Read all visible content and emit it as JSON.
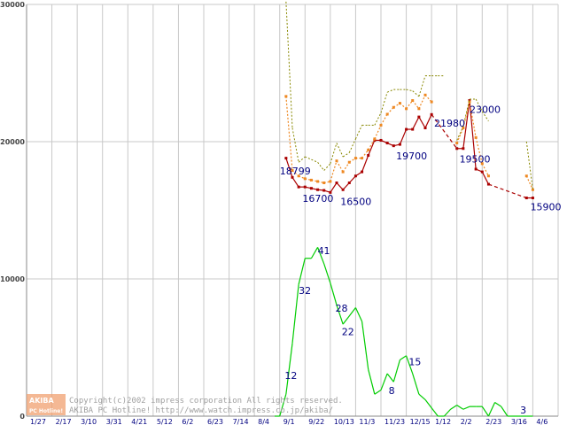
{
  "chart_data": {
    "type": "line",
    "ylim": [
      0,
      30000
    ],
    "y_ticks": [
      0,
      10000,
      20000,
      30000
    ],
    "y_tick_labels": [
      "0",
      "10000",
      "20000",
      "30000"
    ],
    "x_tick_labels": [
      "1/27",
      "2/17",
      "3/10",
      "3/31",
      "4/21",
      "5/12",
      "6/2",
      "6/23",
      "7/14",
      "8/4",
      "9/1",
      "9/22",
      "10/13",
      "11/3",
      "11/23",
      "12/15",
      "1/12",
      "2/2",
      "2/23",
      "3/16",
      "4/6"
    ],
    "grid": true,
    "colors": {
      "min_price": "#aa0000",
      "avg_price": "#ee8822",
      "max_price": "#888800",
      "count": "#00cc00",
      "grid": "#c8c8c8",
      "labels": "#000080"
    },
    "series": [
      {
        "key": "min_price",
        "x": [
          10.25,
          10.5,
          10.75,
          11.0,
          11.25,
          11.5,
          11.75,
          12.0,
          12.25,
          12.5,
          12.75,
          13.0,
          13.25,
          13.5,
          13.75,
          14.0,
          14.25,
          14.5,
          14.75,
          15.0,
          15.25,
          15.5,
          15.75,
          16.0,
          16.25,
          16.5,
          16.75,
          17.0,
          17.25,
          17.5,
          17.75,
          18.0,
          18.25,
          18.5,
          18.75,
          19.0,
          19.25,
          19.5,
          19.75,
          20.0
        ],
        "values": [
          18799,
          17400,
          16700,
          16700,
          16600,
          16500,
          16450,
          16300,
          17000,
          16500,
          17000,
          17500,
          17800,
          19000,
          20100,
          20100,
          19900,
          19700,
          19800,
          20900,
          20900,
          21800,
          21000,
          21980,
          null,
          null,
          null,
          19500,
          19500,
          23000,
          18000,
          17800,
          16900,
          null,
          null,
          null,
          null,
          null,
          15900,
          15900
        ],
        "segment_styles": [
          "solid",
          "solid",
          "solid",
          "solid",
          "solid",
          "solid",
          "solid",
          "solid",
          "solid",
          "solid",
          "solid",
          "solid",
          "solid",
          "solid",
          "solid",
          "solid",
          "solid",
          "solid",
          "solid",
          "solid",
          "solid",
          "solid",
          "solid",
          "dashed",
          "dashed",
          "dashed",
          "dashed",
          "solid",
          "solid",
          "solid",
          "solid",
          "solid",
          "dashed",
          "dashed",
          "dashed",
          "dashed",
          "dashed",
          "dashed",
          "solid"
        ]
      },
      {
        "key": "avg_price",
        "x": [
          10.25,
          10.5,
          10.75,
          11.0,
          11.25,
          11.5,
          11.75,
          12.0,
          12.25,
          12.5,
          12.75,
          13.0,
          13.25,
          13.5,
          13.75,
          14.0,
          14.25,
          14.5,
          14.75,
          15.0,
          15.25,
          15.5,
          15.75,
          16.0,
          16.25,
          16.5,
          16.75,
          17.0,
          17.25,
          17.5,
          17.75,
          18.0,
          18.25,
          18.5,
          18.75,
          19.0,
          19.25,
          19.5,
          19.75,
          20.0
        ],
        "values": [
          23300,
          17900,
          17500,
          17300,
          17200,
          17100,
          17000,
          17100,
          18600,
          17800,
          18500,
          18800,
          18800,
          19400,
          20200,
          21200,
          22000,
          22500,
          22800,
          22400,
          23000,
          22400,
          23400,
          22900,
          null,
          null,
          null,
          19900,
          21000,
          22900,
          20300,
          18400,
          17500,
          null,
          null,
          null,
          null,
          null,
          17500,
          16500
        ],
        "segment_styles": [
          "dotted",
          "dotted",
          "dotted",
          "dotted",
          "dotted",
          "dotted",
          "dotted",
          "dotted",
          "dotted",
          "dotted",
          "dotted",
          "dotted",
          "dotted",
          "dotted",
          "dotted",
          "dotted",
          "dotted",
          "dotted",
          "dotted",
          "dotted",
          "dotted",
          "dotted",
          "dotted",
          "dotted",
          "dotted",
          "dotted",
          "dotted",
          "dotted",
          "dotted",
          "dotted",
          "dotted",
          "dotted",
          "dotted",
          "dotted",
          "dotted",
          "dotted",
          "dotted",
          "dotted",
          "dotted"
        ]
      },
      {
        "key": "max_price",
        "x": [
          10.25,
          10.5,
          10.75,
          11.0,
          11.25,
          11.5,
          11.75,
          12.0,
          12.25,
          12.5,
          12.75,
          13.0,
          13.25,
          13.5,
          13.75,
          14.0,
          14.25,
          14.5,
          14.75,
          15.0,
          15.25,
          15.5,
          15.75,
          16.0,
          16.25,
          16.5,
          16.75,
          17.0,
          17.25,
          17.5,
          17.75,
          18.0,
          18.25,
          18.5,
          18.75,
          19.0,
          19.25,
          19.5,
          19.75,
          20.0
        ],
        "values": [
          30200,
          21000,
          18500,
          18900,
          18700,
          18500,
          17900,
          18400,
          19900,
          18900,
          19200,
          20200,
          21200,
          21200,
          21200,
          22100,
          23600,
          23800,
          23800,
          23800,
          23700,
          23300,
          24800,
          24800,
          24800,
          24800,
          null,
          20100,
          21100,
          23100,
          23100,
          22200,
          21500,
          null,
          null,
          null,
          null,
          null,
          20000,
          16500
        ],
        "segment_styles": [
          "dotted",
          "dotted",
          "dotted",
          "dotted",
          "dotted",
          "dotted",
          "dotted",
          "dotted",
          "dotted",
          "dotted",
          "dotted",
          "dotted",
          "dotted",
          "dotted",
          "dotted",
          "dotted",
          "dotted",
          "dotted",
          "dotted",
          "dotted",
          "dotted",
          "dotted",
          "dotted",
          "dotted",
          "dotted",
          "dotted",
          "dotted",
          "dotted",
          "dotted",
          "dotted",
          "dotted",
          "dotted",
          "dotted",
          "dotted",
          "dotted",
          "dotted",
          "dotted",
          "dotted",
          "dotted"
        ]
      },
      {
        "key": "count",
        "x": [
          9.8,
          10.0,
          10.25,
          10.5,
          10.75,
          11.0,
          11.25,
          11.5,
          11.75,
          12.0,
          12.25,
          12.5,
          12.75,
          13.0,
          13.25,
          13.5,
          13.75,
          14.0,
          14.25,
          14.5,
          14.75,
          15.0,
          15.25,
          15.5,
          15.75,
          16.0,
          16.25,
          16.5,
          16.75,
          17.0,
          17.25,
          17.5,
          17.75,
          18.0,
          18.25,
          18.5,
          18.75,
          19.0,
          19.25,
          19.5,
          19.75,
          20.0
        ],
        "values": [
          0,
          0,
          1600,
          5300,
          9600,
          11500,
          11500,
          12300,
          11100,
          9700,
          8100,
          6700,
          7300,
          7900,
          6900,
          3400,
          1600,
          1900,
          3100,
          2500,
          4100,
          4400,
          3100,
          1600,
          1200,
          600,
          0,
          0,
          500,
          800,
          500,
          700,
          700,
          700,
          0,
          1000,
          700,
          0,
          0,
          0,
          0,
          0
        ],
        "segment_styles": [
          "solid",
          "solid",
          "solid",
          "solid",
          "solid",
          "solid",
          "solid",
          "solid",
          "solid",
          "solid",
          "solid",
          "solid",
          "solid",
          "solid",
          "solid",
          "solid",
          "solid",
          "solid",
          "solid",
          "solid",
          "solid",
          "solid",
          "solid",
          "solid",
          "solid",
          "solid",
          "solid",
          "solid",
          "solid",
          "solid",
          "solid",
          "solid",
          "solid",
          "solid",
          "solid",
          "solid",
          "solid",
          "solid",
          "solid",
          "solid",
          "solid"
        ]
      }
    ],
    "annotations": [
      {
        "text": "18799",
        "x": 10.0,
        "y": 17600
      },
      {
        "text": "16700",
        "x": 10.9,
        "y": 15600
      },
      {
        "text": "16500",
        "x": 12.4,
        "y": 15400
      },
      {
        "text": "19700",
        "x": 14.6,
        "y": 18700
      },
      {
        "text": "21980",
        "x": 16.1,
        "y": 21100
      },
      {
        "text": "23000",
        "x": 17.5,
        "y": 22100
      },
      {
        "text": "19500",
        "x": 17.1,
        "y": 18500
      },
      {
        "text": "15900",
        "x": 19.9,
        "y": 15000
      },
      {
        "text": "12",
        "x": 10.2,
        "y": 2700
      },
      {
        "text": "32",
        "x": 10.75,
        "y": 8900
      },
      {
        "text": "41",
        "x": 11.5,
        "y": 11800
      },
      {
        "text": "28",
        "x": 12.2,
        "y": 7600
      },
      {
        "text": "22",
        "x": 12.45,
        "y": 5900
      },
      {
        "text": "15",
        "x": 15.1,
        "y": 3700
      },
      {
        "text": "8",
        "x": 14.3,
        "y": 1600
      },
      {
        "text": "3",
        "x": 19.5,
        "y": 200
      }
    ]
  },
  "watermark": {
    "logo_top": "AKIBA",
    "logo_bottom": "PC Hotline!",
    "line1": "Copyright(c)2002 impress corporation All rights reserved.",
    "line2": "AKIBA PC Hotline! http://www.watch.impress.co.jp/akiba/"
  }
}
